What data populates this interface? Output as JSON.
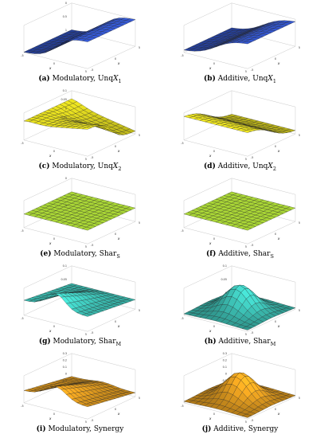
{
  "figure": {
    "panels": [
      {
        "id": "a",
        "label": "(a)",
        "text": "Modulatory, Unq",
        "symbol": "X",
        "sub": "1",
        "ztick_text": [
          "0",
          "0.5",
          "1"
        ],
        "xlabel_char": "x",
        "ylabel_char": "x",
        "color": "#3254c9",
        "shape": "unq1_mod"
      },
      {
        "id": "b",
        "label": "(b)",
        "text": "Additive, Unq",
        "symbol": "X",
        "sub": "1",
        "ztick_text": [],
        "xlabel_char": "x",
        "ylabel_char": "x",
        "color": "#3254c9",
        "shape": "unq1_add"
      },
      {
        "id": "c",
        "label": "(c)",
        "text": "Modulatory, Unq",
        "symbol": "X",
        "sub": "2",
        "ztick_text": [
          "0.1",
          "0.05",
          "0",
          "-0.05"
        ],
        "xlabel_char": "x",
        "ylabel_char": "x",
        "color": "#e8e020",
        "shape": "unq2_mod"
      },
      {
        "id": "d",
        "label": "(d)",
        "text": "Additive, Unq",
        "symbol": "X",
        "sub": "2",
        "ztick_text": [],
        "xlabel_char": "x",
        "ylabel_char": "x",
        "color": "#e8e020",
        "shape": "unq2_add"
      },
      {
        "id": "e",
        "label": "(e)",
        "text": "Modulatory, Shar",
        "symbol": "",
        "sub": "S",
        "ztick_text": [
          "0",
          "-1"
        ],
        "xlabel_char": "x",
        "ylabel_char": "x",
        "color": "#b8e83a",
        "shape": "flat"
      },
      {
        "id": "f",
        "label": "(f)",
        "text": "Additive, Shar",
        "symbol": "",
        "sub": "S",
        "ztick_text": [],
        "xlabel_char": "x",
        "ylabel_char": "x",
        "color": "#b8e83a",
        "shape": "flat"
      },
      {
        "id": "g",
        "label": "(g)",
        "text": "Modulatory, Shar",
        "symbol": "",
        "sub": "M",
        "ztick_text": [
          "0.1",
          "0.05",
          "0"
        ],
        "xlabel_char": "x",
        "ylabel_char": "x",
        "color": "#3ec4b8",
        "shape": "sharm_mod"
      },
      {
        "id": "h",
        "label": "(h)",
        "text": "Additive, Shar",
        "symbol": "",
        "sub": "M",
        "ztick_text": [
          "0.1",
          "0.05",
          "0"
        ],
        "xlabel_char": "x",
        "ylabel_char": "x",
        "color": "#3ec4b8",
        "shape": "peak"
      },
      {
        "id": "i",
        "label": "(i)",
        "text": "Modulatory, Synergy",
        "symbol": "",
        "sub": "",
        "ztick_text": [
          "0.3",
          "0.2",
          "0.1",
          "0",
          "-0.1"
        ],
        "xlabel_char": "x",
        "ylabel_char": "x",
        "color": "#e8a020",
        "shape": "syn_mod"
      },
      {
        "id": "j",
        "label": "(j)",
        "text": "Additive, Synergy",
        "symbol": "",
        "sub": "",
        "ztick_text": [
          "0.3",
          "0.2",
          "0.1",
          "0",
          "-0.1"
        ],
        "xlabel_char": "x",
        "ylabel_char": "x",
        "color": "#e8a020",
        "shape": "peak"
      }
    ],
    "xy_ticks": [
      "-5",
      "0",
      "5"
    ]
  }
}
